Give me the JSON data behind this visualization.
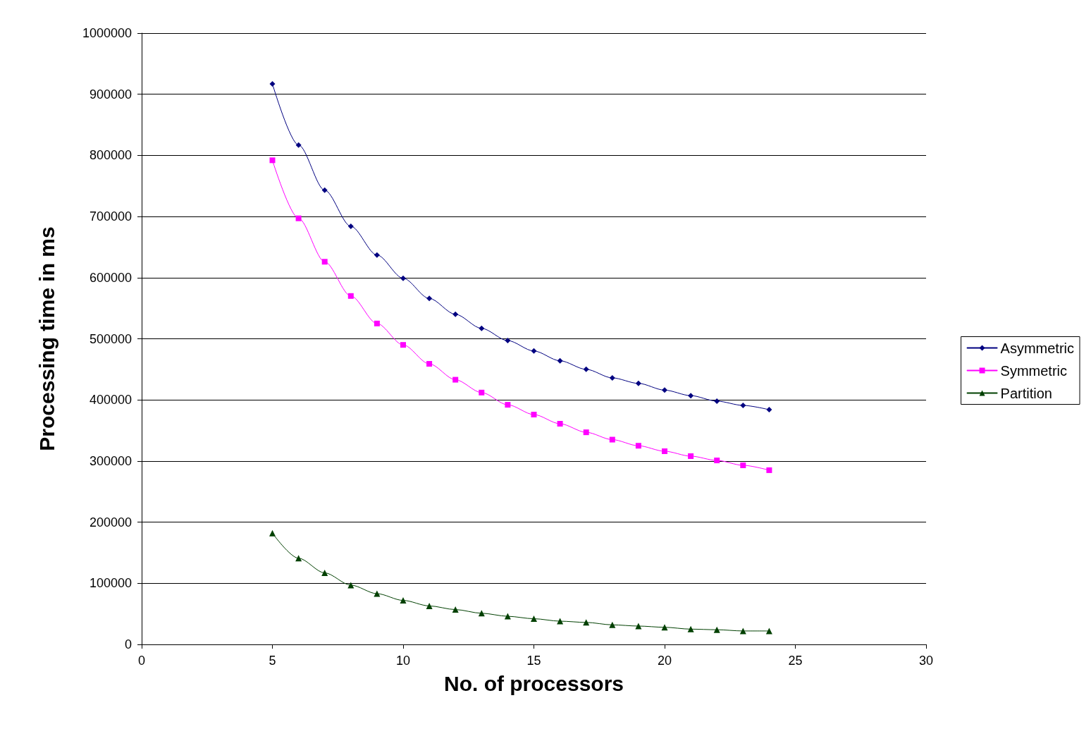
{
  "chart_data": {
    "type": "line",
    "xlabel": "No. of processors",
    "ylabel": "Processing time in ms",
    "x": [
      5,
      6,
      7,
      8,
      9,
      10,
      11,
      12,
      13,
      14,
      15,
      16,
      17,
      18,
      19,
      20,
      21,
      22,
      23,
      24
    ],
    "series": [
      {
        "name": "Asymmetric",
        "color": "#000080",
        "marker": "diamond",
        "values": [
          917000,
          817000,
          743000,
          684000,
          637000,
          599000,
          566000,
          540000,
          517000,
          497000,
          480000,
          464000,
          450000,
          436000,
          427000,
          416000,
          407000,
          398000,
          391000,
          384000
        ]
      },
      {
        "name": "Symmetric",
        "color": "#ff00ff",
        "marker": "square",
        "values": [
          792000,
          697000,
          626000,
          570000,
          525000,
          490000,
          459000,
          433000,
          412000,
          392000,
          376000,
          361000,
          347000,
          335000,
          325000,
          316000,
          308000,
          301000,
          293000,
          285000
        ]
      },
      {
        "name": "Partition",
        "color": "#004000",
        "marker": "triangle",
        "values": [
          182000,
          141000,
          117000,
          97000,
          83000,
          72000,
          63000,
          57000,
          51000,
          46000,
          42000,
          38000,
          36000,
          32000,
          30000,
          28000,
          25000,
          24000,
          22000,
          22000
        ]
      }
    ],
    "xlim": [
      0,
      30
    ],
    "xticks": [
      0,
      5,
      10,
      15,
      20,
      25,
      30
    ],
    "ylim": [
      0,
      1000000
    ],
    "yticks": [
      0,
      100000,
      200000,
      300000,
      400000,
      500000,
      600000,
      700000,
      800000,
      900000,
      1000000
    ],
    "grid": "y",
    "legend": "right",
    "line_style": "solid"
  }
}
